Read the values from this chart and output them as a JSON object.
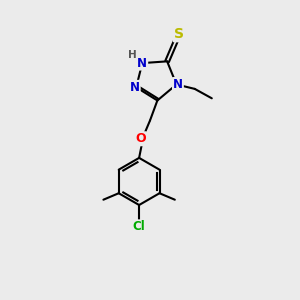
{
  "background_color": "#ebebeb",
  "bond_color": "#000000",
  "atom_colors": {
    "N": "#0000cc",
    "S": "#bbbb00",
    "O": "#ff0000",
    "Cl": "#00aa00",
    "C": "#000000",
    "H": "#555555"
  },
  "figsize": [
    3.0,
    3.0
  ],
  "dpi": 100
}
